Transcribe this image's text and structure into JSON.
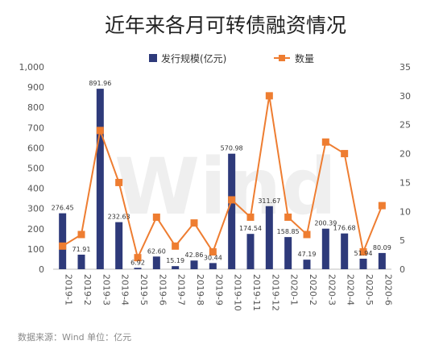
{
  "chart_data": {
    "type": "bar+line",
    "title": "近年来各月可转债融资情况",
    "categories": [
      "2019-1",
      "2019-2",
      "2019-3",
      "2019-4",
      "2019-5",
      "2019-6",
      "2019-7",
      "2019-8",
      "2019-9",
      "2019-10",
      "2019-11",
      "2019-12",
      "2020-1",
      "2020-2",
      "2020-3",
      "2020-4",
      "2020-5",
      "2020-6"
    ],
    "series": [
      {
        "name": "发行规模(亿元)",
        "type": "bar",
        "axis": "left",
        "color": "#2e3a7a",
        "values": [
          276.45,
          71.91,
          891.96,
          232.63,
          6.92,
          62.6,
          15.19,
          42.86,
          30.44,
          570.98,
          174.54,
          311.67,
          158.85,
          47.19,
          200.39,
          176.68,
          51.94,
          80.09
        ],
        "labels": [
          "276.45",
          "71.91",
          "891.96",
          "232.63",
          "6.92",
          "62.60",
          "15.19",
          "42.86",
          "30.44",
          "570.98",
          "174.54",
          "311.67",
          "158.85",
          "47.19",
          "200.39",
          "176.68",
          "51.94",
          "80.09"
        ]
      },
      {
        "name": "数量",
        "type": "line",
        "axis": "right",
        "color": "#ee7d31",
        "values": [
          4,
          6,
          24,
          15,
          2,
          9,
          4,
          8,
          3,
          12,
          9,
          30,
          9,
          6,
          22,
          20,
          3,
          11
        ]
      }
    ],
    "left_axis": {
      "min": 0,
      "max": 1000,
      "ticks": [
        0,
        100,
        200,
        300,
        400,
        500,
        600,
        700,
        800,
        900,
        1000
      ],
      "tick_labels": [
        "0",
        "100",
        "200",
        "300",
        "400",
        "500",
        "600",
        "700",
        "800",
        "900",
        "1,000"
      ]
    },
    "right_axis": {
      "min": 0,
      "max": 35,
      "ticks": [
        0,
        5,
        10,
        15,
        20,
        25,
        30,
        35
      ],
      "tick_labels": [
        "0",
        "5",
        "10",
        "15",
        "20",
        "25",
        "30",
        "35"
      ]
    },
    "legend_position": "top",
    "grid": false
  },
  "watermark": "Wind",
  "footer": "数据来源：Wind    单位：亿元"
}
